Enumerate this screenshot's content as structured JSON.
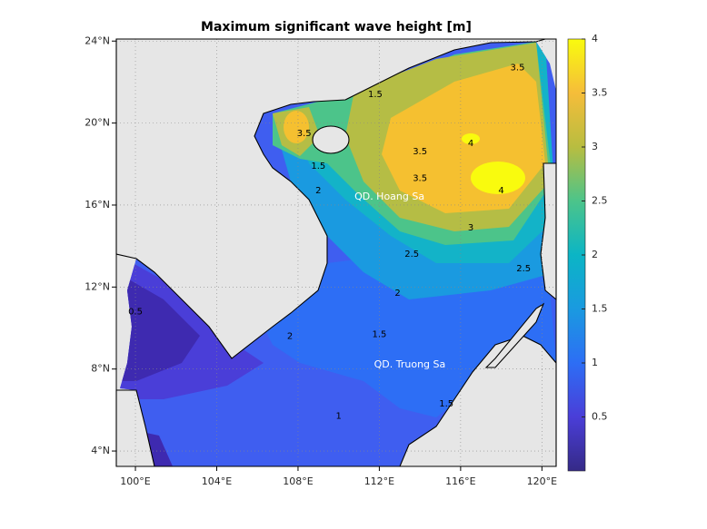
{
  "chart_data": {
    "type": "map",
    "title": "Maximum significant wave height [m]",
    "xlim": [
      99.06,
      120.7
    ],
    "ylim": [
      3.25,
      24.1
    ],
    "xticks": [
      {
        "value": 100,
        "label": "100°E"
      },
      {
        "value": 104,
        "label": "104°E"
      },
      {
        "value": 108,
        "label": "108°E"
      },
      {
        "value": 112,
        "label": "112°E"
      },
      {
        "value": 116,
        "label": "116°E"
      },
      {
        "value": 120,
        "label": "120°E"
      }
    ],
    "yticks": [
      {
        "value": 4,
        "label": "4°N"
      },
      {
        "value": 8,
        "label": "8°N"
      },
      {
        "value": 12,
        "label": "12°N"
      },
      {
        "value": 16,
        "label": "16°N"
      },
      {
        "value": 20,
        "label": "20°N"
      },
      {
        "value": 24,
        "label": "24°N"
      }
    ],
    "grid": true,
    "colorbar": {
      "lim": [
        0,
        4
      ],
      "ticks": [
        0.5,
        1,
        1.5,
        2,
        2.5,
        3,
        3.5,
        4
      ]
    },
    "contour_labels": [
      {
        "text": "4",
        "lon": 116.5,
        "lat": 19.0
      },
      {
        "text": "4",
        "lon": 118.0,
        "lat": 16.7
      },
      {
        "text": "3.5",
        "lon": 114.0,
        "lat": 18.6
      },
      {
        "text": "3.5",
        "lon": 114.0,
        "lat": 17.3
      },
      {
        "text": "3",
        "lon": 116.5,
        "lat": 14.9
      },
      {
        "text": "2.5",
        "lon": 113.6,
        "lat": 13.6
      },
      {
        "text": "2",
        "lon": 112.9,
        "lat": 11.7
      },
      {
        "text": "1.5",
        "lon": 112.0,
        "lat": 9.7
      },
      {
        "text": "1",
        "lon": 110.0,
        "lat": 5.7
      },
      {
        "text": "1.5",
        "lon": 115.3,
        "lat": 6.3
      },
      {
        "text": "2.5",
        "lon": 119.1,
        "lat": 12.9
      },
      {
        "text": "3.5",
        "lon": 108.3,
        "lat": 19.5
      },
      {
        "text": "3.5",
        "lon": 118.8,
        "lat": 22.7
      },
      {
        "text": "1.5",
        "lon": 109.0,
        "lat": 17.9
      },
      {
        "text": "2",
        "lon": 109.0,
        "lat": 16.7
      },
      {
        "text": "2",
        "lon": 107.6,
        "lat": 9.6
      },
      {
        "text": "0.5",
        "lon": 100.0,
        "lat": 10.8
      },
      {
        "text": "1.5",
        "lon": 111.8,
        "lat": 21.4
      }
    ],
    "places": [
      {
        "text": "QD. Hoang Sa",
        "lon": 112.5,
        "lat": 16.4
      },
      {
        "text": "QD. Truong Sa",
        "lon": 113.5,
        "lat": 8.2
      }
    ]
  }
}
